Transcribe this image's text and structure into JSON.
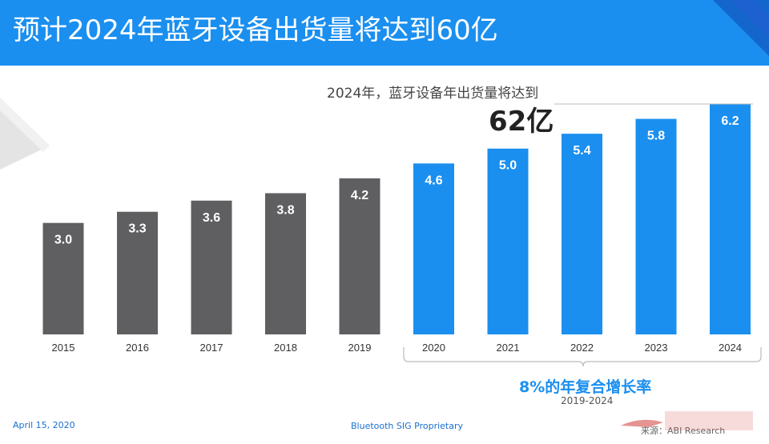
{
  "header": {
    "title": "预计2024年蓝牙设备出货量将达到60亿"
  },
  "callout": {
    "text": "2024年，蓝牙设备年出货量将达到",
    "value": "62亿"
  },
  "cagr": {
    "label": "8%的年复合增长率",
    "range": "2019-2024"
  },
  "footer": {
    "date": "April 15, 2020",
    "center": "Bluetooth SIG Proprietary",
    "source": "来源：ABI Research"
  },
  "colors": {
    "accent": "#1a8ff0",
    "history": "#5f5f61"
  },
  "chart_data": {
    "type": "bar",
    "categories": [
      "2015",
      "2016",
      "2017",
      "2018",
      "2019",
      "2020",
      "2021",
      "2022",
      "2023",
      "2024"
    ],
    "values": [
      3.0,
      3.3,
      3.6,
      3.8,
      4.2,
      4.6,
      5.0,
      5.4,
      5.8,
      6.2
    ],
    "value_labels": [
      "3.0",
      "3.3",
      "3.6",
      "3.8",
      "4.2",
      "4.6",
      "5.0",
      "5.4",
      "5.8",
      "6.2"
    ],
    "forecast_from_index": 5,
    "title": "",
    "xlabel": "",
    "ylabel": "",
    "ylim": [
      0,
      6.2
    ],
    "grid": false,
    "legend": "none"
  }
}
